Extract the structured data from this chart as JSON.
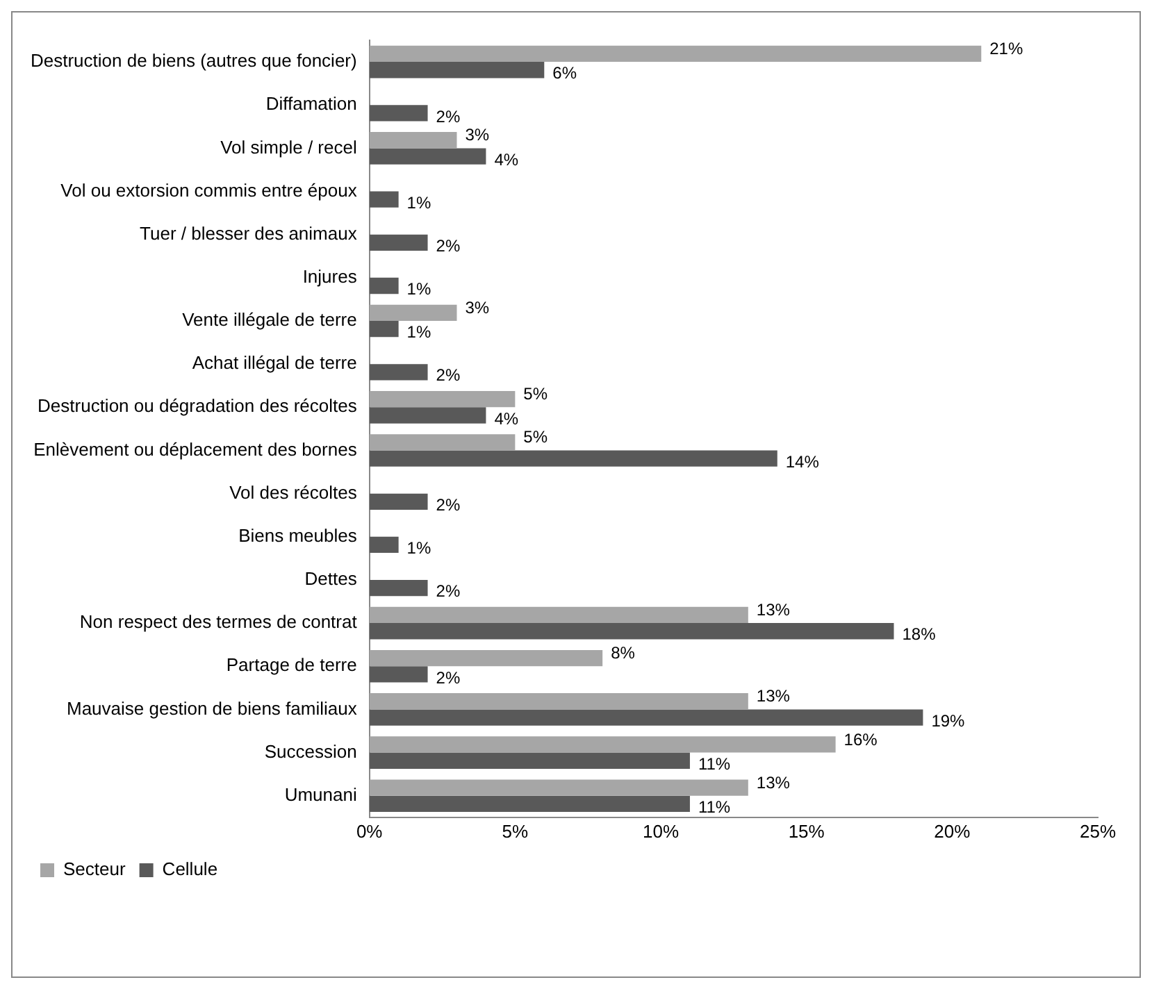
{
  "chart_data": {
    "type": "bar",
    "orientation": "horizontal",
    "categories": [
      "Destruction de biens (autres que foncier)",
      "Diffamation",
      "Vol simple / recel",
      "Vol ou extorsion commis entre époux",
      "Tuer / blesser des animaux",
      "Injures",
      "Vente illégale de terre",
      "Achat illégal de terre",
      "Destruction ou dégradation des récoltes",
      "Enlèvement ou déplacement des bornes",
      "Vol des récoltes",
      "Biens meubles",
      "Dettes",
      "Non respect des termes de contrat",
      "Partage de terre",
      "Mauvaise gestion de biens familiaux",
      "Succession",
      "Umunani"
    ],
    "series": [
      {
        "name": "Secteur",
        "color": "#a6a6a6",
        "values": [
          21,
          null,
          3,
          null,
          null,
          null,
          3,
          null,
          5,
          5,
          null,
          null,
          null,
          13,
          8,
          13,
          16,
          13
        ],
        "value_labels": [
          "21%",
          null,
          "3%",
          null,
          null,
          null,
          "3%",
          null,
          "5%",
          "5%",
          null,
          null,
          null,
          "13%",
          "8%",
          "13%",
          "16%",
          "13%"
        ]
      },
      {
        "name": "Cellule",
        "color": "#595959",
        "values": [
          6,
          2,
          4,
          1,
          2,
          1,
          1,
          2,
          4,
          14,
          2,
          1,
          2,
          18,
          2,
          19,
          11,
          11
        ],
        "value_labels": [
          "6%",
          "2%",
          "4%",
          "1%",
          "2%",
          "1%",
          "1%",
          "2%",
          "4%",
          "14%",
          "2%",
          "1%",
          "2%",
          "18%",
          "2%",
          "19%",
          "11%",
          "11%"
        ]
      }
    ],
    "xlim": [
      0,
      25
    ],
    "xticks": [
      {
        "value": 0,
        "label": "0%"
      },
      {
        "value": 5,
        "label": "5%"
      },
      {
        "value": 10,
        "label": "10%"
      },
      {
        "value": 15,
        "label": "15%"
      },
      {
        "value": 20,
        "label": "20%"
      },
      {
        "value": 25,
        "label": "25%"
      }
    ],
    "grid": false,
    "legend": "bottom left"
  }
}
